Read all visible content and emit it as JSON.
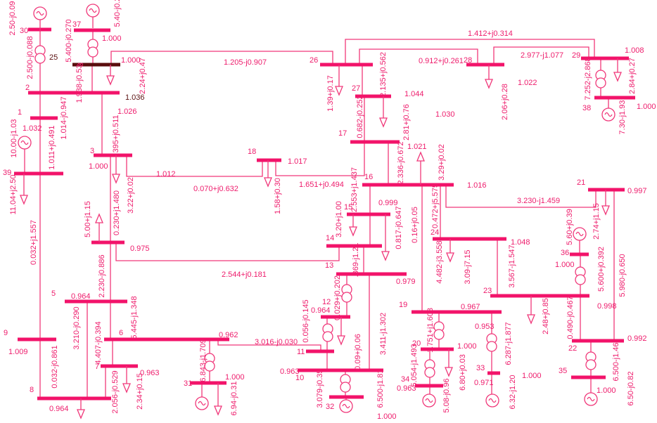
{
  "colors": {
    "line": "#f0387a",
    "bus": "#f2136a",
    "text": "#ee1c6c",
    "highlight": "#5a0d0d"
  },
  "bus_numbers": {
    "b1": "1",
    "b2": "2",
    "b3": "3",
    "b3b": "3",
    "b5": "5",
    "b6": "6",
    "b7": "7",
    "b8": "8",
    "b9": "9",
    "b10": "10",
    "b11": "11",
    "b12": "12",
    "b13": "13",
    "b14": "14",
    "b15": "15",
    "b16": "16",
    "b17": "17",
    "b18": "18",
    "b19": "19",
    "b20": "20",
    "b21": "21",
    "b22": "22",
    "b23": "23",
    "b24": "24",
    "b25": "25",
    "b26": "26",
    "b27": "27",
    "b28": "28",
    "b29": "29",
    "b30": "30",
    "b31": "31",
    "b32": "32",
    "b33": "33",
    "b34": "34",
    "b35": "35",
    "b36": "36",
    "b37": "37",
    "b38": "38",
    "b39": "39"
  },
  "voltages": {
    "v25": "1.000",
    "v37": "1.000",
    "v2": "1.036",
    "v3a": "1.026",
    "v1": "1.032",
    "v3": "1.000",
    "v3_18": "1.012",
    "v18": "1.017",
    "v4": "0.975",
    "v5": "0.964",
    "v9": "1.009",
    "v8": "0.964",
    "v6": "0.962",
    "v7": "0.963",
    "v31": "1.000",
    "v12": "0.964",
    "v10": "0.963",
    "v32": "1.000",
    "v13": "0.979",
    "v15": "0.999",
    "v16": "1.016",
    "v16b": "1.021",
    "v27": "1.044",
    "v17": "1.030",
    "v28": "1.022",
    "v29": "1.008",
    "v38": "1.000",
    "v21": "0.997",
    "v24": "1.048",
    "v23": "0.998",
    "v36": "1.000",
    "v22": "0.992",
    "v35": "1.000",
    "v19": "0.967",
    "v20": "1.000",
    "v34": "0.963",
    "v33a": "0.953",
    "v33": "0.971",
    "v33g": "1.000"
  },
  "branch_flows": {
    "f30_2": "2.500-j0.088",
    "f37_25": "5.400-j0.270",
    "f25_2": "1.938-j0.53",
    "f25_26": "1.205-j0.907",
    "f2_1": "1.014-j0.947",
    "f2_3": ".395+j0.511",
    "f1_39": "1.011+j0.491",
    "f39_9": "0.032+j1.557",
    "f9_8": "0.032-j0.861",
    "f3_18": "0.070+j0.632",
    "f18_17": "1.651+j0.494",
    "f3_4": "0.230+j1.480",
    "f4_14": "2.544+j0.181",
    "f4_5": "2.230-j0.886",
    "f5_8": "3.210-j0.290",
    "f5_6": "5.445-j1.348",
    "f6_7": "4.407-j0.394",
    "f7_8": "2.056-j0.529",
    "f31_6": "6.843-j1.709",
    "f6_11": "3.016-j0.030",
    "f11_12": "0.056-j0.145",
    "f10_11": "3.079-j0.35",
    "f32_10": "6.500-j1.81",
    "f10_13": "3.411-j1.302",
    "f11_10": "0.09+j0.06",
    "f12_13": "0.029+j0.202",
    "f13_14": ".369-j1.21",
    "f14_15": "0.817-j0.647",
    "f15_16": "2.553+j1.437",
    "f16_17": "2.336-j0.672",
    "f16_19": "0.16+j0.05",
    "f16_24": "0.472+j5.575",
    "f16_21": "3.230-j1.459",
    "f17_27": "0.682-j0.252",
    "f27_26": "2.135+j0.562",
    "f26_29": "1.412+j0.314",
    "f26_28": "0.912+j0.261",
    "f28_29": "2.977-j1.077",
    "f38_29": "7.252-j2.868",
    "f24_23": "4.482-j3.558",
    "f23_24": "3.567-j1.547",
    "f36_23": "5.600+j0.392",
    "f23_22": "0.490-j0.467",
    "f21_22": "5.980-j0.650",
    "f35_22": "6.500-j1.46",
    "f19_20": "1.751+j1.603",
    "f34_20": "5.054-j1.493",
    "f33_19": "6.287-j1.877"
  },
  "loads": {
    "l25": "2.24+j0.47",
    "l39": "11.04+j2.50",
    "l3": "3.22+j0.02",
    "l18": "1.58+j0.30",
    "l4": "5.00+j1.15",
    "l7": "2.34+j0.15",
    "l31": "6.94-j0.31",
    "l15": "3.20+j1.00",
    "l16": "3.29+j0.02",
    "l26": "1.39+j0.17",
    "l27": "2.81+j0.76",
    "l28": "2.06+j0.28",
    "l29": "2.84+j0.27",
    "l24": "3.09-j7.15",
    "l21": "2.74+j1.15",
    "l23": "2.48+j0.85",
    "l20": "6.80+j0.03"
  },
  "generation": {
    "g30": "2.50-j0.09",
    "g37": "5.40-j0.2",
    "g39": "10.00-j1.03",
    "g38": "7.30-j1.93",
    "g36": "5.60+j0.39",
    "g35": "6.50-j0.82",
    "g34": "5.08-j0.96",
    "g33": "6.32-j1.20"
  }
}
